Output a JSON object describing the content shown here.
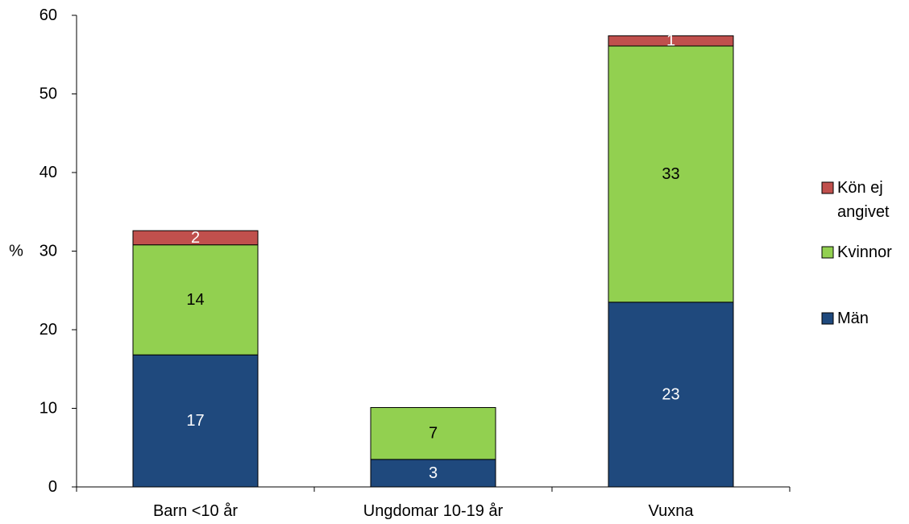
{
  "chart_data": {
    "type": "bar",
    "stacked": true,
    "categories": [
      "Barn <10 år",
      "Ungdomar 10-19 år",
      "Vuxna"
    ],
    "series": [
      {
        "name": "Män",
        "color": "#1F497D",
        "values": [
          16.8,
          3.5,
          23.5
        ],
        "labels": [
          "17",
          "3",
          "23"
        ],
        "label_color": "#FFFFFF"
      },
      {
        "name": "Kvinnor",
        "color": "#92D050",
        "values": [
          14.0,
          6.6,
          32.6
        ],
        "labels": [
          "14",
          "7",
          "33"
        ],
        "label_color": "#000000"
      },
      {
        "name": "Kön ej angivet",
        "legend_lines": [
          "Kön ej",
          "angivet"
        ],
        "color": "#C0504D",
        "values": [
          1.8,
          0,
          1.3
        ],
        "labels": [
          "2",
          "",
          "1"
        ],
        "label_color": "#FFFFFF"
      }
    ],
    "ylabel": "%",
    "ylim": [
      0,
      60
    ],
    "yticks": [
      0,
      10,
      20,
      30,
      40,
      50,
      60
    ],
    "grid": false,
    "legend_position": "right",
    "legend_order": [
      "Kön ej angivet",
      "Kvinnor",
      "Män"
    ]
  }
}
